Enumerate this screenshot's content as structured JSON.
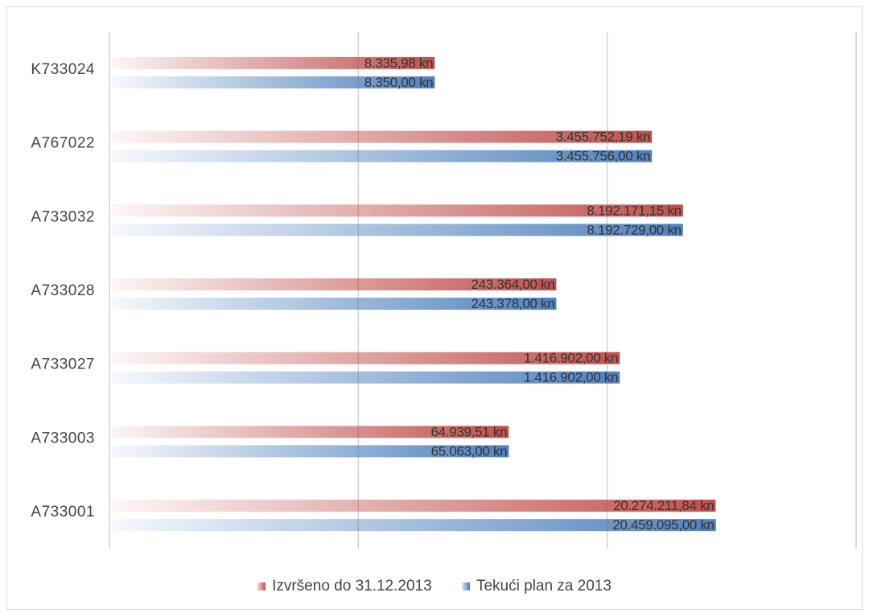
{
  "chart_data": {
    "type": "bar",
    "orientation": "horizontal",
    "categories": [
      "K733024",
      "A767022",
      "A733032",
      "A733028",
      "A733027",
      "A733003",
      "A733001"
    ],
    "series": [
      {
        "name": "Izvršeno do 31.12.2013",
        "color": "#c0504d",
        "values": [
          8335.98,
          3455752.19,
          8192171.15,
          243364.0,
          1416902.0,
          64939.51,
          20274211.84
        ],
        "labels": [
          "8.335,98 kn",
          "3.455.752,19 kn",
          "8.192.171,15 kn",
          "243.364,00 kn",
          "1.416.902,00 kn",
          "64.939,51 kn",
          "20.274.211,84 kn"
        ]
      },
      {
        "name": "Tekući plan za 2013",
        "color": "#4f81bd",
        "values": [
          8350.0,
          3455756.0,
          8192729.0,
          243378.0,
          1416902.0,
          65063.0,
          20459095.0
        ],
        "labels": [
          "8.350,00 kn",
          "3.455.756,00 kn",
          "8.192.729,00 kn",
          "243.378,00 kn",
          "1.416.902,00 kn",
          "65.063,00 kn",
          "20.459.095,00 kn"
        ]
      }
    ],
    "xscale": "log",
    "xlim": [
      1,
      1000000000
    ],
    "gridlines": [
      1,
      1000,
      1000000,
      1000000000
    ],
    "show_tick_labels": false,
    "grid": true,
    "legend_position": "bottom"
  }
}
